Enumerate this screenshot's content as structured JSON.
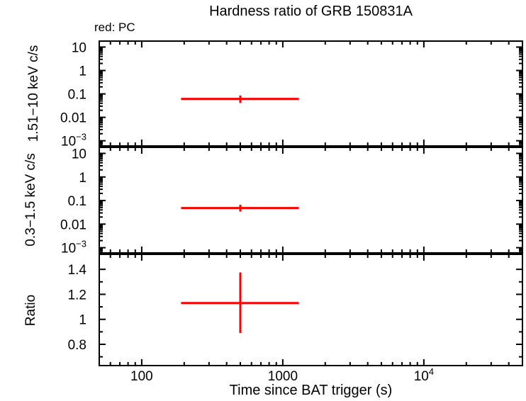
{
  "figure": {
    "title": "Hardness ratio of GRB 150831A",
    "legend_label": "red: PC",
    "xlabel": "Time since BAT trigger (s)"
  },
  "colors": {
    "series": "#ff0000",
    "axis": "#000000",
    "background": "#ffffff",
    "text": "#000000"
  },
  "chart_data": {
    "type": "scatter",
    "title": "Hardness ratio of GRB 150831A",
    "annotation": "red: PC",
    "annotation_meaning": "red points = PC (Photon Counting) mode",
    "xlabel": "Time since BAT trigger (s)",
    "grid": false,
    "legend_position": "top-left",
    "x_axis": {
      "scale": "log",
      "min": 50,
      "max": 50000,
      "major_ticks": [
        100,
        1000,
        10000
      ],
      "major_tick_labels": [
        "100",
        "1000",
        "10^4"
      ]
    },
    "panels": [
      {
        "name": "hard_band",
        "ylabel": "1.51−10 keV c/s",
        "yscale": "log",
        "ylim": [
          0.0006,
          18
        ],
        "y_major_ticks": [
          10,
          1,
          0.1,
          0.01,
          0.001
        ],
        "y_major_tick_labels": [
          "10",
          "1",
          "0.1",
          "0.01",
          "10^−3"
        ],
        "series": [
          {
            "name": "PC",
            "color": "#ff0000",
            "points": [
              {
                "x": 500,
                "x_lo": 190,
                "x_hi": 1300,
                "y": 0.061,
                "y_lo": 0.041,
                "y_hi": 0.085
              }
            ]
          }
        ]
      },
      {
        "name": "soft_band",
        "ylabel": "0.3−1.5 keV c/s",
        "yscale": "log",
        "ylim": [
          0.0006,
          18
        ],
        "y_major_ticks": [
          10,
          1,
          0.1,
          0.01,
          0.001
        ],
        "y_major_tick_labels": [
          "10",
          "1",
          "0.1",
          "0.01",
          "10^−3"
        ],
        "series": [
          {
            "name": "PC",
            "color": "#ff0000",
            "points": [
              {
                "x": 500,
                "x_lo": 190,
                "x_hi": 1300,
                "y": 0.048,
                "y_lo": 0.034,
                "y_hi": 0.066
              }
            ]
          }
        ]
      },
      {
        "name": "ratio",
        "ylabel": "Ratio",
        "yscale": "linear",
        "ylim": [
          0.63,
          1.52
        ],
        "y_major_ticks": [
          0.8,
          1,
          1.2,
          1.4
        ],
        "y_major_tick_labels": [
          "0.8",
          "1",
          "1.2",
          "1.4"
        ],
        "y_minor_ticks": [
          0.7,
          0.9,
          1.1,
          1.3
        ],
        "series": [
          {
            "name": "PC",
            "color": "#ff0000",
            "points": [
              {
                "x": 500,
                "x_lo": 190,
                "x_hi": 1300,
                "y": 1.13,
                "y_lo": 0.89,
                "y_hi": 1.375
              }
            ]
          }
        ]
      }
    ]
  }
}
